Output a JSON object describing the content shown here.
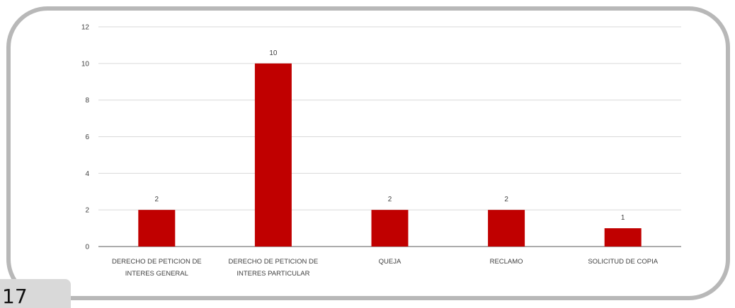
{
  "page": {
    "number": "17"
  },
  "colors": {
    "bar": "#c00000",
    "grid": "#d9d9d9",
    "axis": "#595959",
    "frame": "#b8b8b8",
    "page_tab": "#d9d9d9"
  },
  "chart_data": {
    "type": "bar",
    "categories": [
      [
        "DERECHO DE PETICION DE",
        "INTERES GENERAL"
      ],
      [
        "DERECHO DE PETICION DE",
        "INTERES PARTICULAR"
      ],
      [
        "QUEJA"
      ],
      [
        "RECLAMO"
      ],
      [
        "SOLICITUD DE COPIA"
      ]
    ],
    "values": [
      2,
      10,
      2,
      2,
      1
    ],
    "title": "",
    "xlabel": "",
    "ylabel": "",
    "ylim": [
      0,
      12
    ],
    "yticks": [
      0,
      2,
      4,
      6,
      8,
      10,
      12
    ],
    "grid": true,
    "legend": "none"
  }
}
